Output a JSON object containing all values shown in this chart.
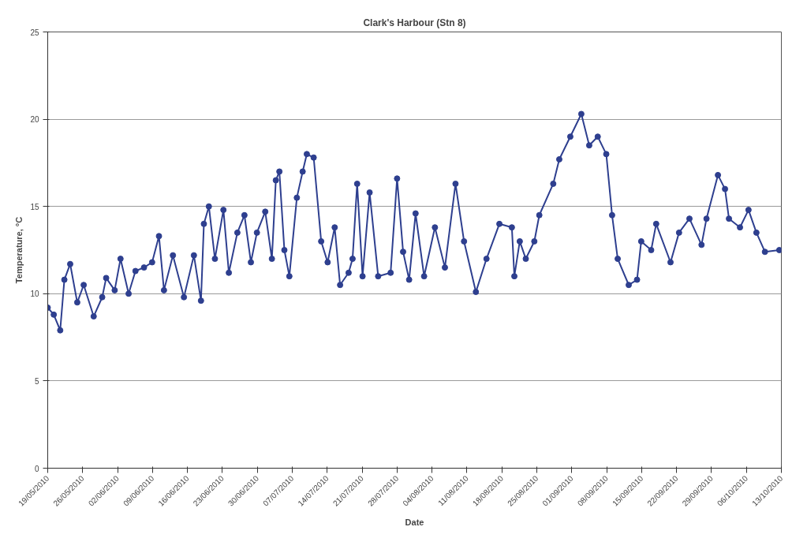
{
  "chart_data": {
    "type": "line",
    "title": "Clark's Harbour (Stn 8)",
    "xlabel": "Date",
    "ylabel": "Temperature, °C",
    "x": [
      "2010-05-19T00:00",
      "2010-05-20T05:00",
      "2010-05-21T12:00",
      "2010-05-22T08:00",
      "2010-05-23T12:00",
      "2010-05-24T22:00",
      "2010-05-26T05:00",
      "2010-05-28T05:00",
      "2010-05-29T22:00",
      "2010-05-30T17:00",
      "2010-06-01T10:00",
      "2010-06-02T14:00",
      "2010-06-04T05:00",
      "2010-06-05T14:00",
      "2010-06-07T07:00",
      "2010-06-08T22:00",
      "2010-06-10T07:00",
      "2010-06-11T07:00",
      "2010-06-13T02:00",
      "2010-06-15T07:00",
      "2010-06-17T07:00",
      "2010-06-18T17:00",
      "2010-06-19T07:00",
      "2010-06-20T07:00",
      "2010-06-21T12:00",
      "2010-06-23T05:00",
      "2010-06-24T07:00",
      "2010-06-26T00:00",
      "2010-06-27T10:00",
      "2010-06-28T17:00",
      "2010-06-29T22:00",
      "2010-07-01T14:00",
      "2010-07-02T22:00",
      "2010-07-03T17:00",
      "2010-07-04T10:00",
      "2010-07-05T10:00",
      "2010-07-06T10:00",
      "2010-07-07T22:00",
      "2010-07-09T02:00",
      "2010-07-09T22:00",
      "2010-07-11T07:00",
      "2010-07-12T19:00",
      "2010-07-14T02:00",
      "2010-07-15T12:00",
      "2010-07-16T14:00",
      "2010-07-18T07:00",
      "2010-07-19T02:00",
      "2010-07-20T00:00",
      "2010-07-21T02:00",
      "2010-07-22T12:00",
      "2010-07-24T05:00",
      "2010-07-26T17:00",
      "2010-07-28T00:00",
      "2010-07-29T05:00",
      "2010-07-30T10:00",
      "2010-07-31T17:00",
      "2010-08-02T10:00",
      "2010-08-04T14:00",
      "2010-08-06T14:00",
      "2010-08-08T17:00",
      "2010-08-10T10:00",
      "2010-08-12T19:00",
      "2010-08-14T22:00",
      "2010-08-17T12:00",
      "2010-08-20T00:00",
      "2010-08-20T12:00",
      "2010-08-21T14:00",
      "2010-08-22T19:00",
      "2010-08-24T12:00",
      "2010-08-25T12:00",
      "2010-08-28T07:00",
      "2010-08-29T12:00",
      "2010-08-31T17:00",
      "2010-09-02T22:00",
      "2010-09-04T12:00",
      "2010-09-06T05:00",
      "2010-09-07T22:00",
      "2010-09-09T02:00",
      "2010-09-10T05:00",
      "2010-09-12T10:00",
      "2010-09-14T02:00",
      "2010-09-14T22:00",
      "2010-09-16T22:00",
      "2010-09-17T22:00",
      "2010-09-20T19:00",
      "2010-09-22T12:00",
      "2010-09-24T14:00",
      "2010-09-27T00:00",
      "2010-09-28T00:00",
      "2010-09-30T07:00",
      "2010-10-01T17:00",
      "2010-10-02T12:00",
      "2010-10-04T17:00",
      "2010-10-06T10:00",
      "2010-10-08T00:00",
      "2010-10-09T17:00",
      "2010-10-12T14:00"
    ],
    "series": [
      {
        "color": "#2e3f8f",
        "values": [
          9.2,
          8.8,
          7.9,
          10.8,
          11.7,
          9.5,
          10.5,
          8.7,
          9.8,
          10.9,
          10.2,
          12.0,
          10.0,
          11.3,
          11.5,
          11.8,
          13.3,
          10.2,
          12.2,
          9.8,
          12.2,
          9.6,
          14.0,
          15.0,
          12.0,
          14.8,
          11.2,
          13.5,
          14.5,
          11.8,
          13.5,
          14.7,
          12.0,
          16.5,
          17.0,
          12.5,
          11.0,
          15.5,
          17.0,
          18.0,
          17.8,
          13.0,
          11.8,
          13.8,
          10.5,
          11.2,
          12.0,
          16.3,
          11.0,
          15.8,
          11.0,
          11.2,
          16.6,
          12.4,
          10.8,
          14.6,
          11.0,
          13.8,
          11.5,
          16.3,
          13.0,
          10.1,
          12.0,
          14.0,
          13.8,
          11.0,
          13.0,
          12.0,
          13.0,
          14.5,
          16.3,
          17.7,
          19.0,
          20.3,
          18.5,
          19.0,
          18.0,
          14.5,
          12.0,
          10.5,
          10.8,
          13.0,
          12.5,
          14.0,
          11.8,
          13.5,
          14.3,
          12.8,
          14.3,
          16.8,
          16.0,
          14.3,
          13.8,
          14.8,
          13.5,
          12.4,
          12.5
        ]
      }
    ],
    "xlim": [
      "2010-05-19",
      "2010-10-13"
    ],
    "xticks": [
      {
        "value": "2010-05-19",
        "label": "19/05/2010"
      },
      {
        "value": "2010-05-26",
        "label": "26/05/2010"
      },
      {
        "value": "2010-06-02",
        "label": "02/06/2010"
      },
      {
        "value": "2010-06-09",
        "label": "09/06/2010"
      },
      {
        "value": "2010-06-16",
        "label": "16/06/2010"
      },
      {
        "value": "2010-06-23",
        "label": "23/06/2010"
      },
      {
        "value": "2010-06-30",
        "label": "30/06/2010"
      },
      {
        "value": "2010-07-07",
        "label": "07/07/2010"
      },
      {
        "value": "2010-07-14",
        "label": "14/07/2010"
      },
      {
        "value": "2010-07-21",
        "label": "21/07/2010"
      },
      {
        "value": "2010-07-28",
        "label": "28/07/2010"
      },
      {
        "value": "2010-08-04",
        "label": "04/08/2010"
      },
      {
        "value": "2010-08-11",
        "label": "11/08/2010"
      },
      {
        "value": "2010-08-18",
        "label": "18/08/2010"
      },
      {
        "value": "2010-08-25",
        "label": "25/08/2010"
      },
      {
        "value": "2010-09-01",
        "label": "01/09/2010"
      },
      {
        "value": "2010-09-08",
        "label": "08/09/2010"
      },
      {
        "value": "2010-09-15",
        "label": "15/09/2010"
      },
      {
        "value": "2010-09-22",
        "label": "22/09/2010"
      },
      {
        "value": "2010-09-29",
        "label": "29/09/2010"
      },
      {
        "value": "2010-10-06",
        "label": "06/10/2010"
      },
      {
        "value": "2010-10-13",
        "label": "13/10/2010"
      }
    ],
    "ylim": [
      0,
      25
    ],
    "yticks": [
      0,
      5,
      10,
      15,
      20,
      25
    ],
    "grid": "y",
    "marker": "circle",
    "line_style": "solid"
  }
}
